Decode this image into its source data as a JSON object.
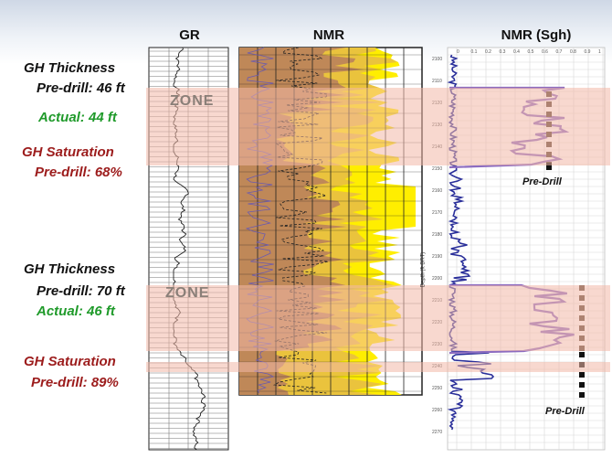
{
  "headers": {
    "gr": "GR",
    "nmr": "NMR",
    "nmr_sgh": "NMR (Sgh)"
  },
  "upper_zone": {
    "thickness_title": "GH Thickness",
    "thickness_predrill": "Pre-drill: 46 ft",
    "thickness_actual": "Actual:  44 ft",
    "saturation_title": "GH Saturation",
    "saturation_predrill": "Pre-drill: 68%",
    "zone_label": "ZONE",
    "predrill_marker": "Pre-Drill"
  },
  "lower_zone": {
    "thickness_title": "GH Thickness",
    "thickness_predrill": "Pre-drill: 70 ft",
    "thickness_actual": "Actual:  46 ft",
    "saturation_title": "GH Saturation",
    "saturation_predrill": "Pre-drill: 89%",
    "zone_label": "ZONE",
    "predrill_marker": "Pre-Drill"
  },
  "depth_axis_label": "Depth (ft BRT)",
  "colors": {
    "zone_highlight": "#f3b8a8",
    "nmr_yellow": "#ffee00",
    "nmr_brown": "#a06a3c",
    "sgh_purple": "#8c6cc0",
    "sgh_blue": "#2a2f9a",
    "actual_green": "#1f9a2a",
    "saturation_red": "#9c1c1c"
  }
}
